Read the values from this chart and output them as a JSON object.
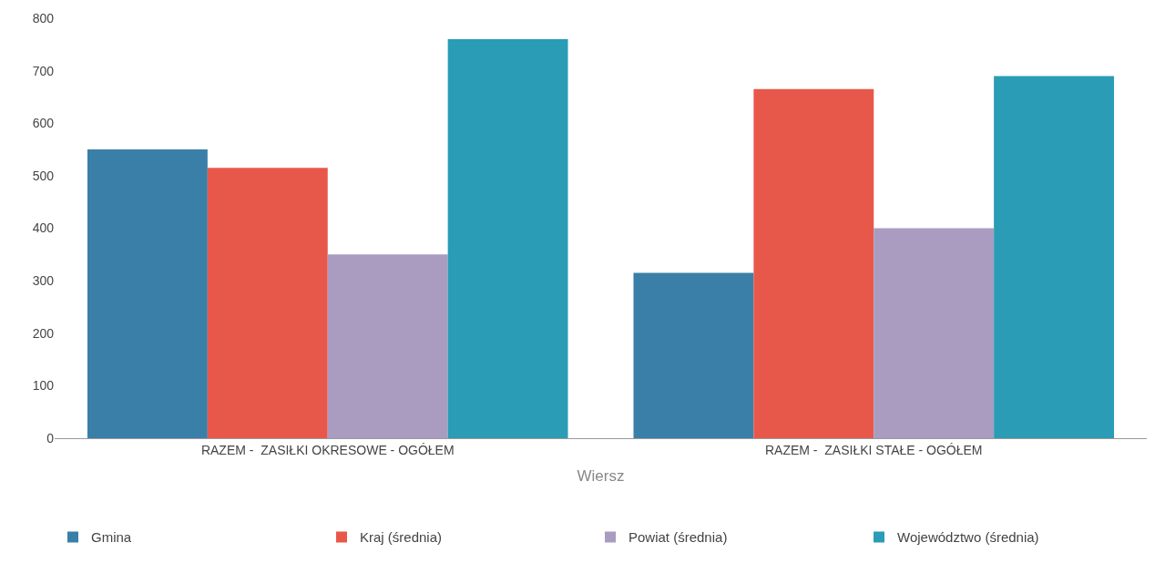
{
  "chart_data": {
    "type": "bar",
    "xlabel": "Wiersz",
    "categories": [
      "RAZEM -  ZASIŁKI OKRESOWE - OGÓŁEM",
      "RAZEM -  ZASIŁKI STAŁE - OGÓŁEM"
    ],
    "series": [
      {
        "name": "Gmina",
        "color": "#3a7fa8",
        "values": [
          550,
          315
        ]
      },
      {
        "name": "Kraj (średnia)",
        "color": "#e8584a",
        "values": [
          515,
          665
        ]
      },
      {
        "name": "Powiat (średnia)",
        "color": "#a99cc0",
        "values": [
          350,
          400
        ]
      },
      {
        "name": "Województwo (średnia)",
        "color": "#2a9cb5",
        "values": [
          760,
          690
        ]
      }
    ],
    "ylim": [
      0,
      800
    ],
    "yticks": [
      0,
      100,
      200,
      300,
      400,
      500,
      600,
      700,
      800
    ],
    "legend": "bottom"
  }
}
